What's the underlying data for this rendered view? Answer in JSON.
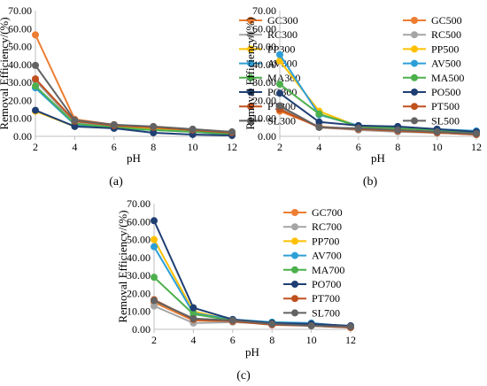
{
  "chart_data": [
    {
      "type": "line",
      "caption": "(a)",
      "xlabel": "pH",
      "ylabel": "Removal Efficiency/(%)",
      "x": [
        2,
        4,
        6,
        8,
        10,
        12
      ],
      "ylim": [
        0,
        70
      ],
      "yticks": [
        "0.00",
        "10.00",
        "20.00",
        "30.00",
        "40.00",
        "50.00",
        "60.00",
        "70.00"
      ],
      "legend_position": "right",
      "series": [
        {
          "name": "GC300",
          "color": "#ED7D31",
          "values": [
            56.5,
            9.5,
            6.5,
            4.8,
            3.8,
            1.8
          ]
        },
        {
          "name": "RC300",
          "color": "#A5A5A5",
          "values": [
            31.0,
            7.5,
            5.5,
            4.0,
            3.0,
            1.5
          ]
        },
        {
          "name": "PP300",
          "color": "#FFC000",
          "values": [
            14.0,
            5.5,
            5.0,
            4.0,
            2.8,
            1.2
          ]
        },
        {
          "name": "AV300",
          "color": "#2E9FD6",
          "values": [
            27.0,
            6.5,
            4.5,
            3.5,
            2.5,
            1.0
          ]
        },
        {
          "name": "MA300",
          "color": "#4CB04C",
          "values": [
            28.0,
            7.0,
            5.0,
            3.5,
            2.5,
            1.2
          ]
        },
        {
          "name": "PO300",
          "color": "#1F3F73",
          "values": [
            14.5,
            5.5,
            4.5,
            2.0,
            1.0,
            0.5
          ]
        },
        {
          "name": "PT300",
          "color": "#C0501D",
          "values": [
            32.0,
            8.5,
            6.0,
            5.0,
            3.5,
            2.0
          ]
        },
        {
          "name": "SL300",
          "color": "#636363",
          "values": [
            39.5,
            9.0,
            6.5,
            5.5,
            4.0,
            2.5
          ]
        }
      ]
    },
    {
      "type": "line",
      "caption": "(b)",
      "xlabel": "pH",
      "ylabel": "Removal Efficiency/(%)",
      "x": [
        2,
        4,
        6,
        8,
        10,
        12
      ],
      "ylim": [
        0,
        70
      ],
      "yticks": [
        "0.00",
        "10.00",
        "20.00",
        "30.00",
        "40.00",
        "50.00",
        "60.00",
        "70.00"
      ],
      "legend_position": "right",
      "series": [
        {
          "name": "GC500",
          "color": "#ED7D31",
          "values": [
            14.0,
            5.5,
            4.0,
            3.0,
            2.0,
            1.5
          ]
        },
        {
          "name": "RC500",
          "color": "#A5A5A5",
          "values": [
            16.0,
            5.0,
            3.5,
            2.5,
            2.0,
            1.0
          ]
        },
        {
          "name": "PP500",
          "color": "#FFC000",
          "values": [
            42.0,
            14.0,
            5.5,
            4.0,
            3.5,
            2.0
          ]
        },
        {
          "name": "AV500",
          "color": "#2E9FD6",
          "values": [
            45.5,
            12.0,
            6.0,
            5.0,
            4.0,
            3.0
          ]
        },
        {
          "name": "MA500",
          "color": "#4CB04C",
          "values": [
            29.0,
            12.5,
            5.5,
            4.5,
            3.5,
            2.0
          ]
        },
        {
          "name": "PO500",
          "color": "#1F3F73",
          "values": [
            24.0,
            8.0,
            6.0,
            5.5,
            4.0,
            2.5
          ]
        },
        {
          "name": "PT500",
          "color": "#C0501D",
          "values": [
            15.0,
            5.0,
            4.0,
            3.0,
            2.0,
            1.0
          ]
        },
        {
          "name": "SL500",
          "color": "#636363",
          "values": [
            17.0,
            5.0,
            4.5,
            3.5,
            2.5,
            1.5
          ]
        }
      ]
    },
    {
      "type": "line",
      "caption": "(c)",
      "xlabel": "pH",
      "ylabel": "Removal Efficiency/(%)",
      "x": [
        2,
        4,
        6,
        8,
        10,
        12
      ],
      "ylim": [
        0,
        70
      ],
      "yticks": [
        "0.00",
        "10.00",
        "20.00",
        "30.00",
        "40.00",
        "50.00",
        "60.00",
        "70.00"
      ],
      "legend_position": "right",
      "series": [
        {
          "name": "GC700",
          "color": "#ED7D31",
          "values": [
            15.0,
            5.0,
            4.5,
            3.0,
            2.5,
            1.5
          ]
        },
        {
          "name": "RC700",
          "color": "#A5A5A5",
          "values": [
            13.0,
            3.5,
            4.0,
            3.0,
            2.0,
            1.0
          ]
        },
        {
          "name": "PP700",
          "color": "#FFC000",
          "values": [
            50.0,
            10.0,
            5.0,
            4.0,
            3.0,
            1.5
          ]
        },
        {
          "name": "AV700",
          "color": "#2E9FD6",
          "values": [
            46.0,
            9.0,
            5.5,
            4.0,
            3.5,
            1.5
          ]
        },
        {
          "name": "MA700",
          "color": "#4CB04C",
          "values": [
            29.0,
            8.5,
            5.0,
            3.5,
            2.5,
            1.5
          ]
        },
        {
          "name": "PO700",
          "color": "#1F3F73",
          "values": [
            60.5,
            12.0,
            5.5,
            3.5,
            3.0,
            2.0
          ]
        },
        {
          "name": "PT700",
          "color": "#C0501D",
          "values": [
            16.5,
            5.5,
            4.5,
            2.5,
            2.0,
            1.0
          ]
        },
        {
          "name": "SL700",
          "color": "#636363",
          "values": [
            16.0,
            6.0,
            5.0,
            3.0,
            2.0,
            1.5
          ]
        }
      ]
    }
  ]
}
